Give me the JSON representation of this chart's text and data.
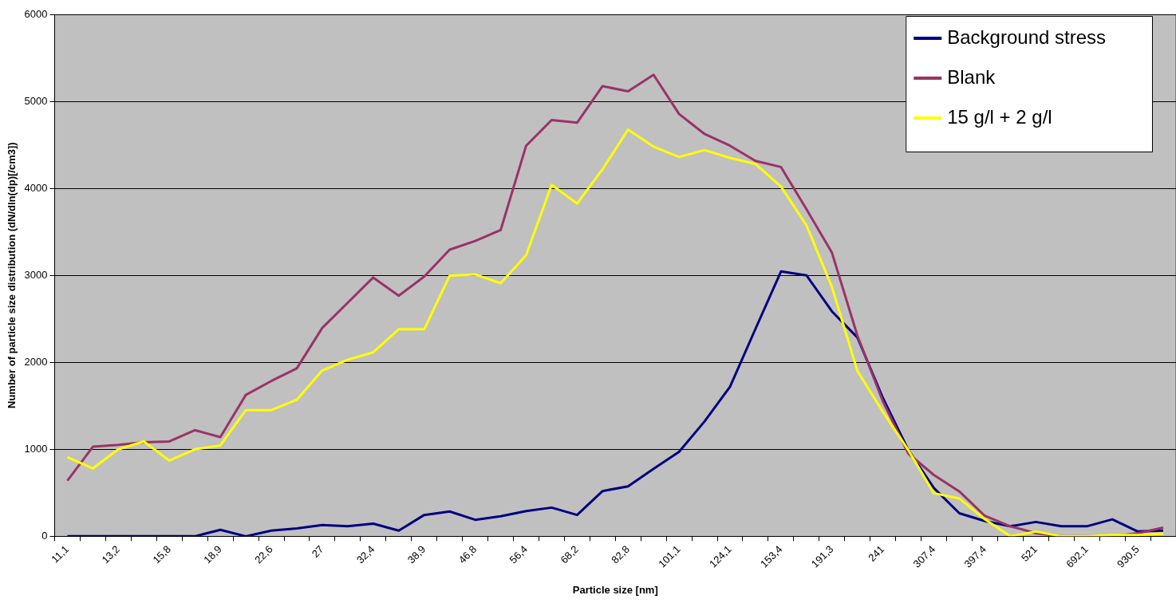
{
  "chart_data": {
    "type": "line",
    "xlabel": "Particle size [nm]",
    "ylabel": "Number of particle size distribution (dN/dln(dp)[/cm3])",
    "categories": [
      "11,1",
      null,
      "13,2",
      null,
      "15,8",
      null,
      "18,9",
      null,
      "22,6",
      null,
      "27",
      null,
      "32,4",
      null,
      "38,9",
      null,
      "46,8",
      null,
      "56,4",
      null,
      "68,2",
      null,
      "82,8",
      null,
      "101,1",
      null,
      "124,1",
      null,
      "153,4",
      null,
      "191,3",
      null,
      "241",
      null,
      "307,4",
      null,
      "397,4",
      null,
      "521",
      null,
      "692,1",
      null,
      "930,5",
      null
    ],
    "series": [
      {
        "name": "Background stress",
        "color": "#000080",
        "values": [
          0,
          0,
          0,
          0,
          0,
          0,
          75,
          0,
          65,
          90,
          130,
          115,
          145,
          65,
          245,
          285,
          190,
          230,
          290,
          330,
          245,
          520,
          575,
          775,
          970,
          1320,
          1720,
          2385,
          3045,
          3000,
          2585,
          2285,
          1590,
          990,
          555,
          265,
          175,
          115,
          165,
          115,
          115,
          195,
          55,
          65
        ]
      },
      {
        "name": "Blank",
        "color": "#993366",
        "values": [
          640,
          1030,
          1050,
          1080,
          1090,
          1220,
          1140,
          1625,
          1785,
          1930,
          2395,
          2685,
          2975,
          2765,
          2985,
          3295,
          3395,
          3520,
          4490,
          4785,
          4755,
          5175,
          5115,
          5305,
          4855,
          4625,
          4490,
          4315,
          4245,
          3760,
          3260,
          2305,
          1550,
          950,
          705,
          515,
          235,
          115,
          35,
          0,
          0,
          0,
          35,
          100
        ]
      },
      {
        "name": "15 g/l + 2 g/l",
        "color": "#ffff00",
        "values": [
          910,
          780,
          1000,
          1090,
          870,
          1000,
          1045,
          1450,
          1450,
          1570,
          1905,
          2030,
          2115,
          2380,
          2380,
          2995,
          3010,
          2910,
          3230,
          4040,
          3825,
          4220,
          4675,
          4480,
          4360,
          4440,
          4350,
          4280,
          4020,
          3575,
          2865,
          1900,
          1430,
          990,
          495,
          435,
          195,
          0,
          55,
          0,
          0,
          15,
          15,
          30
        ]
      }
    ],
    "ylim": [
      0,
      6000
    ],
    "yticks": [
      0,
      1000,
      2000,
      3000,
      4000,
      5000,
      6000
    ],
    "grid": "y",
    "legend": "top right",
    "marker": "none",
    "line_style": "solid"
  }
}
